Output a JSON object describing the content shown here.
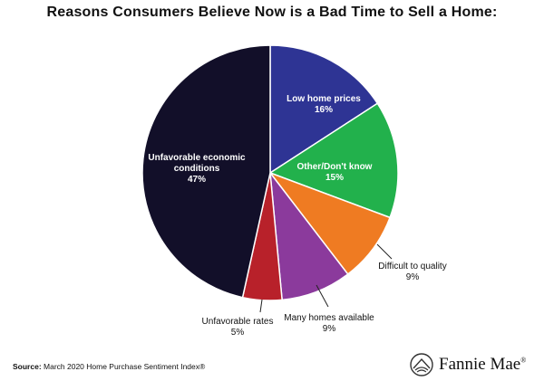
{
  "chart_data": {
    "type": "pie",
    "title": "Reasons Consumers Believe Now is a Bad Time to Sell a Home:",
    "slices": [
      {
        "label": "Low home prices",
        "value": 16,
        "value_label": "16%",
        "color": "#2e3494",
        "label_inside": true
      },
      {
        "label": "Other/Don't know",
        "value": 15,
        "value_label": "15%",
        "color": "#22b14c",
        "label_inside": true
      },
      {
        "label": "Difficult to quality",
        "value": 9,
        "value_label": "9%",
        "color": "#ef7b22",
        "label_inside": false
      },
      {
        "label": "Many homes available",
        "value": 9,
        "value_label": "9%",
        "color": "#8b3a9c",
        "label_inside": false
      },
      {
        "label": "Unfavorable rates",
        "value": 5,
        "value_label": "5%",
        "color": "#b8212a",
        "label_inside": false
      },
      {
        "label": "Unfavorable economic conditions",
        "value": 47,
        "value_label": "47%",
        "color": "#120f29",
        "label_inside": true
      }
    ]
  },
  "footer": {
    "source_label": "Source:",
    "source_text": " March 2020 Home Purchase Sentiment Index®"
  },
  "brand": {
    "name": "Fannie Mae",
    "mark": "®",
    "icon": "house-logo-icon"
  }
}
